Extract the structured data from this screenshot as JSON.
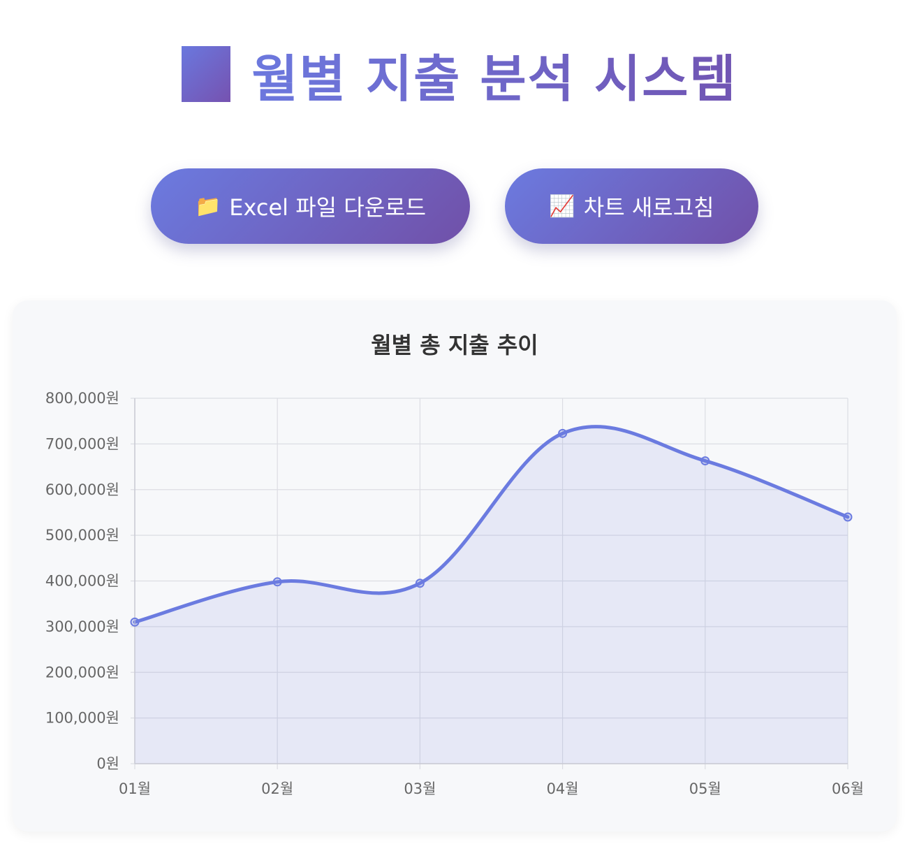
{
  "header": {
    "title_icon": "blue-square-icon",
    "title": "월별 지출 분석 시스템"
  },
  "actions": {
    "excel": {
      "icon": "📁",
      "icon_name": "folder-icon",
      "label": "Excel 파일 다운로드"
    },
    "refresh": {
      "icon": "📈",
      "icon_name": "chart-increasing-icon",
      "label": "차트 새로고침"
    }
  },
  "colors": {
    "accent_start": "#6b7be0",
    "accent_end": "#7150a8",
    "line": "#6b7be0",
    "fill": "rgba(107,123,224,0.12)"
  },
  "chart_data": {
    "type": "line",
    "title": "월별 총 지출 추이",
    "categories": [
      "01월",
      "02월",
      "03월",
      "04월",
      "05월",
      "06월"
    ],
    "series": [
      {
        "values": [
          310000,
          398000,
          395000,
          723000,
          663000,
          540000
        ]
      }
    ],
    "ylim": [
      0,
      800000
    ],
    "yticks": [
      0,
      100000,
      200000,
      300000,
      400000,
      500000,
      600000,
      700000,
      800000
    ],
    "ytick_labels": [
      "0원",
      "100,000원",
      "200,000원",
      "300,000원",
      "400,000원",
      "500,000원",
      "600,000원",
      "700,000원",
      "800,000원"
    ],
    "grid": true,
    "fill": true,
    "smooth": true
  }
}
